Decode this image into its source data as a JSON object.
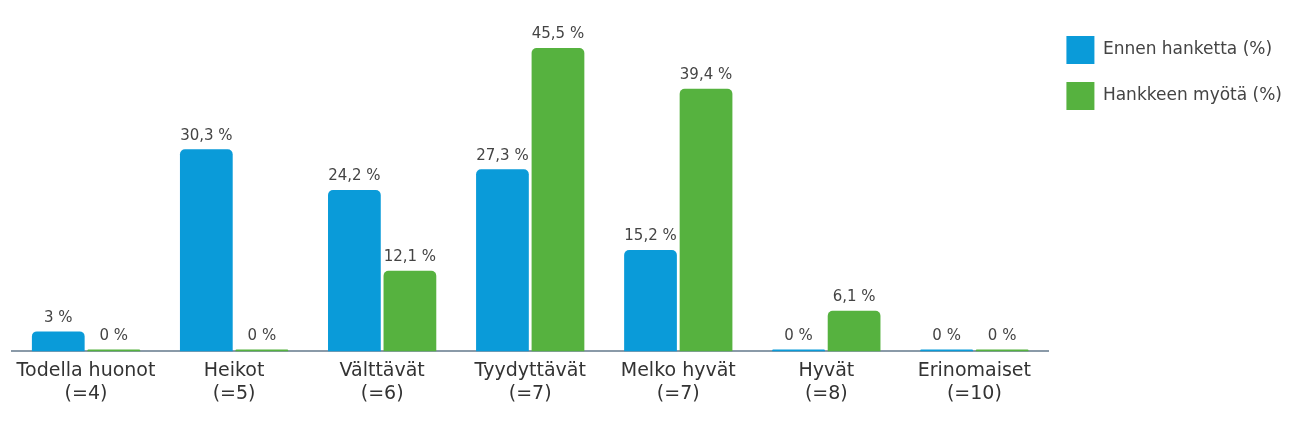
{
  "chart_data": {
    "type": "bar",
    "categories": [
      "Todella huonot\n(=4)",
      "Heikot\n(=5)",
      "Välttävät\n(=6)",
      "Tyydyttävät\n(=7)",
      "Melko hyvät\n(=7)",
      "Hyvät\n(=8)",
      "Erinomaiset\n(=10)"
    ],
    "series": [
      {
        "name": "Ennen hanketta (%)",
        "color": "#0a9bd9",
        "values": [
          3,
          30.3,
          24.2,
          27.3,
          15.2,
          0,
          0
        ],
        "value_labels": [
          "3 %",
          "30,3 %",
          "24,2 %",
          "27,3 %",
          "15,2 %",
          "0 %",
          "0 %"
        ]
      },
      {
        "name": "Hankkeen myötä (%)",
        "color": "#56b23f",
        "values": [
          0,
          0,
          12.1,
          45.5,
          39.4,
          6.1,
          0
        ],
        "value_labels": [
          "0 %",
          "0 %",
          "12,1 %",
          "45,5 %",
          "39,4 %",
          "6,1 %",
          "0 %"
        ]
      }
    ],
    "legend": "top right",
    "grid": false
  }
}
